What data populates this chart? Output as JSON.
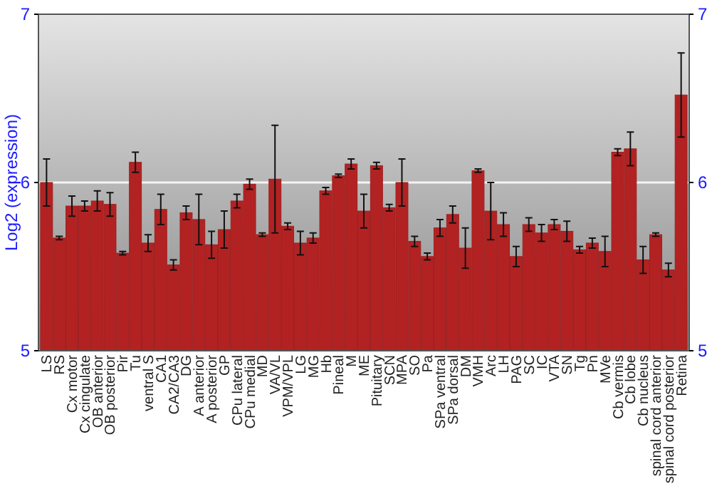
{
  "chart_data": {
    "type": "bar",
    "ylabel": "Log2 (expression)",
    "categories": [
      "LS",
      "RS",
      "Cx motor",
      "Cx cingulate",
      "OB anterior",
      "OB posterior",
      "Pir",
      "Tu",
      "ventral S",
      "CA1",
      "CA2/CA3",
      "DG",
      "A anterior",
      "A posterior",
      "GP",
      "CPu lateral",
      "CPu medial",
      "MD",
      "VA/VL",
      "VPM/VPL",
      "LG",
      "MG",
      "Hb",
      "Pineal",
      "M",
      "ME",
      "Pituitary",
      "SCN",
      "MPA",
      "SO",
      "Pa",
      "SPa ventral",
      "SPa dorsal",
      "DM",
      "VMH",
      "Arc",
      "LH",
      "PAG",
      "SC",
      "IC",
      "VTA",
      "SN",
      "Tg",
      "Pn",
      "MVe",
      "Cb vermis",
      "Cb lobe",
      "Cb nucleus",
      "spinal cord anterior",
      "spinal cord posterior",
      "Retina"
    ],
    "values": [
      6.0,
      5.67,
      5.86,
      5.86,
      5.89,
      5.87,
      5.58,
      6.12,
      5.64,
      5.84,
      5.51,
      5.82,
      5.78,
      5.63,
      5.72,
      5.89,
      5.99,
      5.69,
      6.02,
      5.74,
      5.64,
      5.67,
      5.95,
      6.04,
      6.11,
      5.83,
      6.1,
      5.85,
      6.0,
      5.65,
      5.56,
      5.73,
      5.81,
      5.61,
      6.07,
      5.83,
      5.75,
      5.56,
      5.75,
      5.7,
      5.75,
      5.71,
      5.6,
      5.64,
      5.59,
      6.18,
      6.2,
      5.54,
      5.69,
      5.48,
      6.52
    ],
    "errors": [
      0.14,
      0.01,
      0.06,
      0.03,
      0.06,
      0.07,
      0.01,
      0.06,
      0.05,
      0.09,
      0.03,
      0.04,
      0.15,
      0.08,
      0.11,
      0.04,
      0.03,
      0.01,
      0.32,
      0.02,
      0.07,
      0.03,
      0.02,
      0.01,
      0.03,
      0.1,
      0.02,
      0.02,
      0.14,
      0.03,
      0.02,
      0.05,
      0.05,
      0.12,
      0.01,
      0.17,
      0.07,
      0.06,
      0.04,
      0.05,
      0.03,
      0.06,
      0.02,
      0.03,
      0.09,
      0.02,
      0.1,
      0.08,
      0.01,
      0.04,
      0.25
    ],
    "color": "#b22222",
    "ylim": [
      5,
      7
    ],
    "yticks": [
      5,
      6,
      7
    ],
    "y2lim": [
      5,
      7
    ],
    "y2ticks": [
      5,
      6,
      7
    ],
    "grid": "y"
  }
}
